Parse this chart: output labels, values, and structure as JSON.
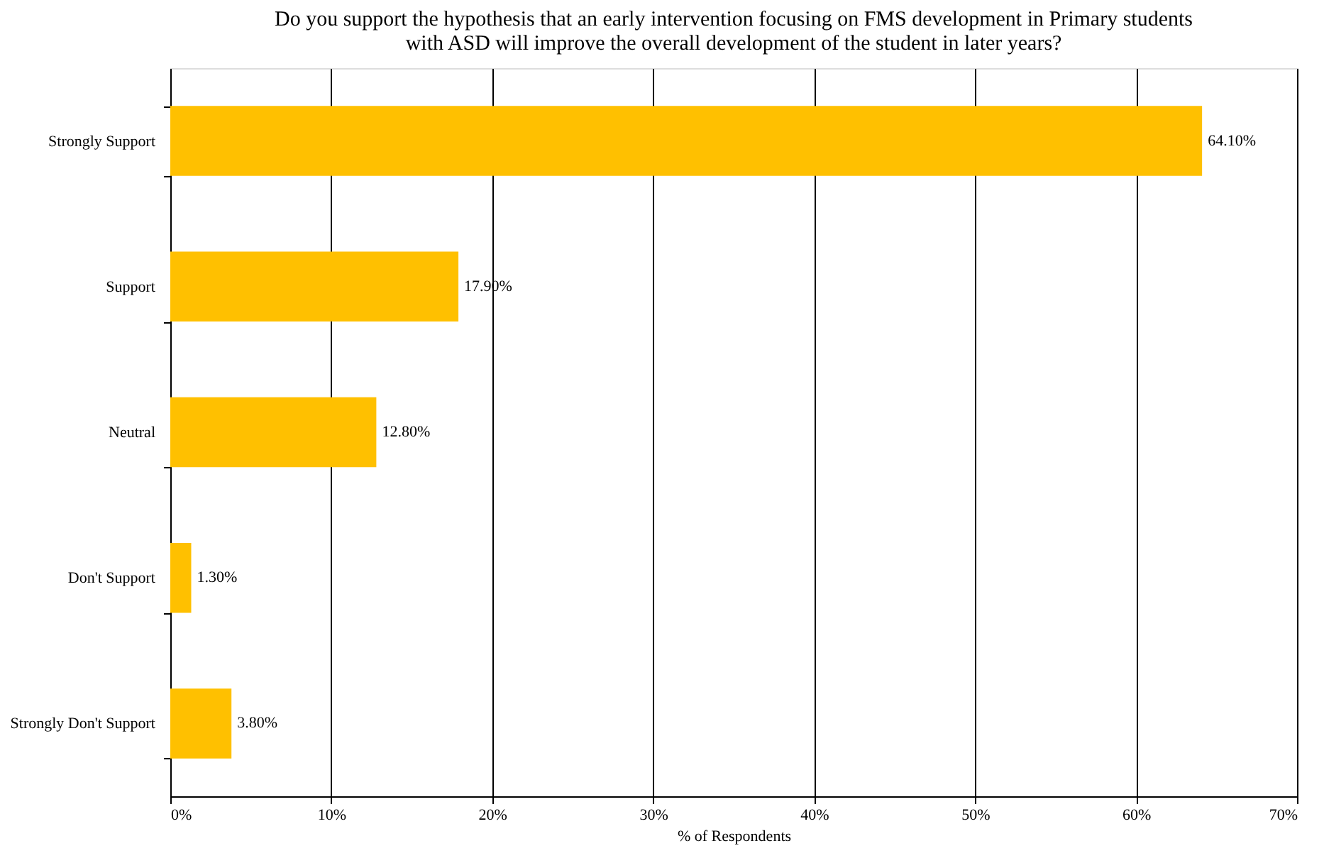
{
  "chart_data": {
    "type": "bar",
    "orientation": "horizontal",
    "title": "Do you support the hypothesis that an early intervention focusing on FMS development in Primary students\nwith ASD will improve the overall development of the student in later years?",
    "xlabel": "% of Respondents",
    "categories": [
      "Strongly Support",
      "Support",
      "Neutral",
      "Don't Support",
      "Strongly Don't Support"
    ],
    "values": [
      64.1,
      17.9,
      12.8,
      1.3,
      3.8
    ],
    "value_labels": [
      "64.10%",
      "17.90%",
      "12.80%",
      "1.30%",
      "3.80%"
    ],
    "color": "#ffc000",
    "xlim": [
      0,
      70
    ],
    "xticks": [
      {
        "value": 0,
        "label": "0%"
      },
      {
        "value": 10,
        "label": "10%"
      },
      {
        "value": 20,
        "label": "20%"
      },
      {
        "value": 30,
        "label": "30%"
      },
      {
        "value": 40,
        "label": "40%"
      },
      {
        "value": 50,
        "label": "50%"
      },
      {
        "value": 60,
        "label": "60%"
      },
      {
        "value": 70,
        "label": "70%"
      }
    ],
    "grid": "x"
  }
}
